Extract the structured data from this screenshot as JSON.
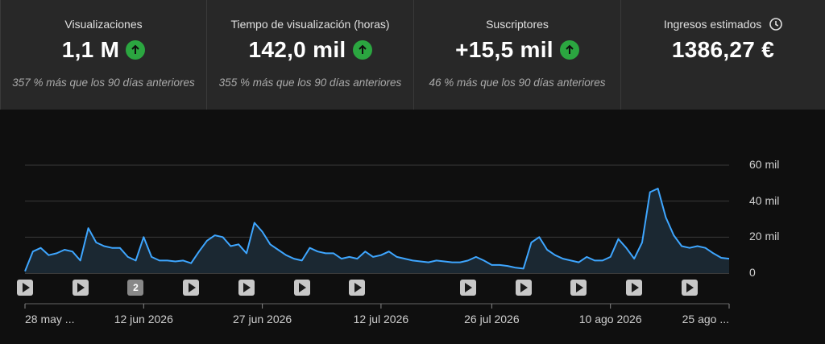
{
  "metrics": [
    {
      "label": "Visualizaciones",
      "value": "1,1 M",
      "trend": "up",
      "sub": "357 % más que los 90 días anteriores",
      "active": true
    },
    {
      "label": "Tiempo de visualización (horas)",
      "value": "142,0 mil",
      "trend": "up",
      "sub": "355 % más que los 90 días anteriores",
      "active": false
    },
    {
      "label": "Suscriptores",
      "value": "+15,5 mil",
      "trend": "up",
      "sub": "46 % más que los 90 días anteriores",
      "active": false
    },
    {
      "label": "Ingresos estimados",
      "value": "1386,27 €",
      "trend": "none",
      "sub": "",
      "active": false,
      "icon": "clock-icon"
    }
  ],
  "colors": {
    "accent": "#3ea6ff",
    "up": "#2ba640",
    "grid": "#3a3a3a"
  },
  "chart_data": {
    "type": "area",
    "ylim": [
      0,
      60000
    ],
    "yticks": [
      {
        "value": 60000,
        "label": "60 mil"
      },
      {
        "value": 40000,
        "label": "40 mil"
      },
      {
        "value": 20000,
        "label": "20 mil"
      },
      {
        "value": 0,
        "label": "0"
      }
    ],
    "x_start": "2026-05-28",
    "xticks": [
      {
        "date": "2026-05-28",
        "label": "28 may ..."
      },
      {
        "date": "2026-06-12",
        "label": "12 jun 2026"
      },
      {
        "date": "2026-06-27",
        "label": "27 jun 2026"
      },
      {
        "date": "2026-07-12",
        "label": "12 jul 2026"
      },
      {
        "date": "2026-07-26",
        "label": "26 jul 2026"
      },
      {
        "date": "2026-08-10",
        "label": "10 ago 2026"
      },
      {
        "date": "2026-08-25",
        "label": "25 ago ..."
      }
    ],
    "series": [
      {
        "values": [
          1000,
          12000,
          14000,
          10000,
          11000,
          13000,
          12000,
          7000,
          25000,
          17000,
          15000,
          14000,
          14000,
          9000,
          7000,
          20000,
          9000,
          7000,
          7000,
          6500,
          7000,
          5500,
          12000,
          18000,
          21000,
          20000,
          15000,
          16000,
          11000,
          28000,
          23000,
          16000,
          13000,
          10000,
          8000,
          7000,
          14000,
          12000,
          11000,
          11000,
          8000,
          9000,
          8000,
          12000,
          9000,
          10000,
          12000,
          9000,
          8000,
          7000,
          6500,
          6000,
          7000,
          6500,
          6000,
          6000,
          7000,
          9000,
          7000,
          4500,
          4500,
          4000,
          3000,
          2500,
          17000,
          20000,
          13000,
          10000,
          8000,
          7000,
          6000,
          9000,
          7000,
          7000,
          9000,
          19000,
          14000,
          8000,
          17000,
          45000,
          47000,
          31000,
          21000,
          15000,
          14000,
          15000,
          14000,
          11000,
          8500,
          8000
        ]
      }
    ],
    "video_markers": [
      {
        "date": "2026-05-28",
        "type": "video",
        "label": ""
      },
      {
        "date": "2026-06-04",
        "type": "video",
        "label": ""
      },
      {
        "date": "2026-06-11",
        "type": "count",
        "label": "2"
      },
      {
        "date": "2026-06-18",
        "type": "video",
        "label": ""
      },
      {
        "date": "2026-06-25",
        "type": "video",
        "label": ""
      },
      {
        "date": "2026-07-02",
        "type": "video",
        "label": ""
      },
      {
        "date": "2026-07-09",
        "type": "video",
        "label": ""
      },
      {
        "date": "2026-07-23",
        "type": "video",
        "label": ""
      },
      {
        "date": "2026-07-30",
        "type": "video",
        "label": ""
      },
      {
        "date": "2026-08-06",
        "type": "video",
        "label": ""
      },
      {
        "date": "2026-08-13",
        "type": "video",
        "label": ""
      },
      {
        "date": "2026-08-20",
        "type": "video",
        "label": ""
      }
    ]
  }
}
